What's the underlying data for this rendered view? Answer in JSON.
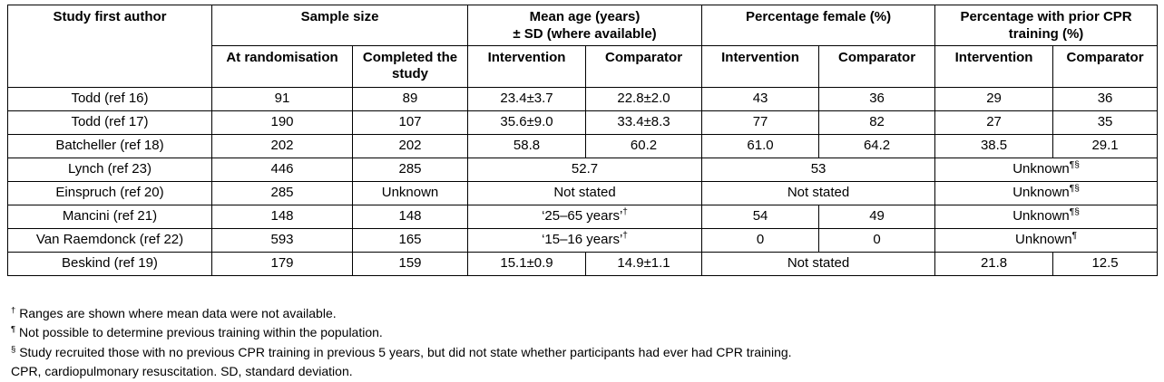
{
  "table": {
    "header": {
      "col_author": "Study first author",
      "group_sample": "Sample size",
      "group_age_line1": "Mean age (years)",
      "group_age_line2": "± SD (where available)",
      "group_female": "Percentage female (%)",
      "group_cpr": "Percentage with prior CPR training (%)",
      "sub_at_randomisation": "At randomisation",
      "sub_completed": "Completed the study",
      "sub_intervention": "Intervention",
      "sub_comparator": "Comparator"
    },
    "rows": [
      {
        "cells": [
          {
            "t": "Todd (ref 16)"
          },
          {
            "t": "91"
          },
          {
            "t": "89"
          },
          {
            "t": "23.4±3.7"
          },
          {
            "t": "22.8±2.0"
          },
          {
            "t": "43"
          },
          {
            "t": "36"
          },
          {
            "t": "29"
          },
          {
            "t": "36"
          }
        ]
      },
      {
        "cells": [
          {
            "t": "Todd (ref 17)"
          },
          {
            "t": "190"
          },
          {
            "t": "107"
          },
          {
            "t": "35.6±9.0"
          },
          {
            "t": "33.4±8.3"
          },
          {
            "t": "77"
          },
          {
            "t": "82"
          },
          {
            "t": "27"
          },
          {
            "t": "35"
          }
        ]
      },
      {
        "cells": [
          {
            "t": "Batcheller (ref 18)"
          },
          {
            "t": "202"
          },
          {
            "t": "202"
          },
          {
            "t": "58.8"
          },
          {
            "t": "60.2"
          },
          {
            "t": "61.0"
          },
          {
            "t": "64.2"
          },
          {
            "t": "38.5"
          },
          {
            "t": "29.1"
          }
        ]
      },
      {
        "cells": [
          {
            "t": "Lynch (ref 23)"
          },
          {
            "t": "446"
          },
          {
            "t": "285"
          },
          {
            "t": "52.7",
            "span": 2
          },
          {
            "t": "53",
            "span": 2
          },
          {
            "t": "Unknown",
            "sup": "¶§",
            "span": 2
          }
        ]
      },
      {
        "cells": [
          {
            "t": "Einspruch (ref 20)"
          },
          {
            "t": "285"
          },
          {
            "t": "Unknown"
          },
          {
            "t": "Not stated",
            "span": 2
          },
          {
            "t": "Not stated",
            "span": 2
          },
          {
            "t": "Unknown",
            "sup": "¶§",
            "span": 2
          }
        ]
      },
      {
        "cells": [
          {
            "t": "Mancini (ref 21)"
          },
          {
            "t": "148"
          },
          {
            "t": "148"
          },
          {
            "t": "‘25–65 years’",
            "sup": "†",
            "span": 2
          },
          {
            "t": "54"
          },
          {
            "t": "49"
          },
          {
            "t": "Unknown",
            "sup": "¶§",
            "span": 2
          }
        ]
      },
      {
        "cells": [
          {
            "t": "Van Raemdonck (ref 22)"
          },
          {
            "t": "593"
          },
          {
            "t": "165"
          },
          {
            "t": "‘15–16 years’",
            "sup": "†",
            "span": 2
          },
          {
            "t": "0"
          },
          {
            "t": "0"
          },
          {
            "t": "Unknown",
            "sup": "¶",
            "span": 2
          }
        ]
      },
      {
        "cells": [
          {
            "t": "Beskind (ref 19)"
          },
          {
            "t": "179"
          },
          {
            "t": "159"
          },
          {
            "t": "15.1±0.9"
          },
          {
            "t": "14.9±1.1"
          },
          {
            "t": "Not stated",
            "span": 2
          },
          {
            "t": "21.8"
          },
          {
            "t": "12.5"
          }
        ]
      }
    ]
  },
  "footnotes": [
    {
      "marker": "†",
      "text": "Ranges are shown where mean data were not available."
    },
    {
      "marker": "¶",
      "text": "Not possible to determine previous training within the population."
    },
    {
      "marker": "§",
      "text": "Study recruited those with no previous CPR training in previous 5 years, but did not state whether participants had ever had CPR training."
    },
    {
      "marker": "",
      "text": "CPR, cardiopulmonary resuscitation. SD, standard deviation."
    }
  ]
}
